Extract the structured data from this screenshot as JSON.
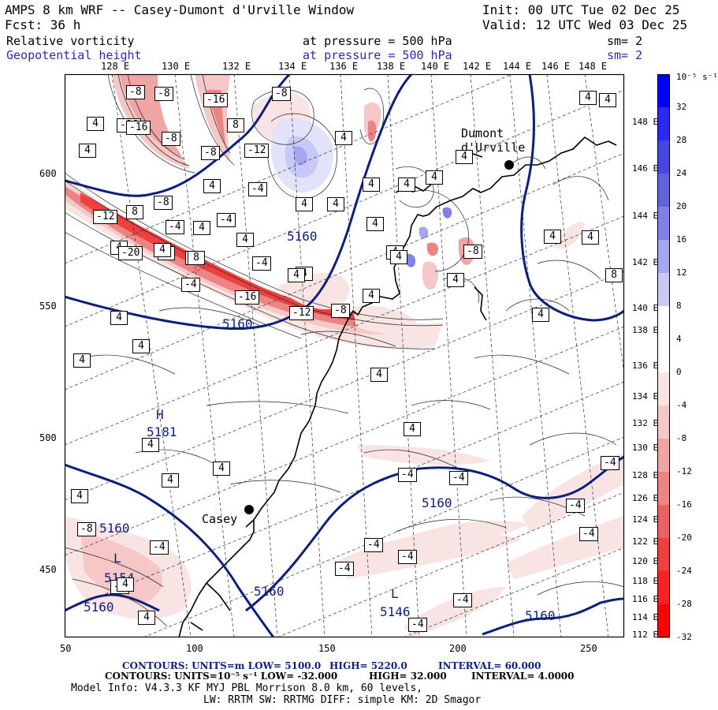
{
  "header": {
    "title_left": "AMPS 8 km WRF -- Casey-Dumont d'Urville Window",
    "init": "Init: 00 UTC Tue 02 Dec 25",
    "fcst": "Fcst:   36 h",
    "valid": "Valid: 12 UTC Wed 03 Dec 25",
    "field1": "Relative vorticity",
    "field1_level": "at pressure =  500 hPa",
    "field1_sm": "sm= 2",
    "field2": "Geopotential height",
    "field2_level": "at pressure =  500 hPa",
    "field2_sm": "sm= 2"
  },
  "axes": {
    "top_lon_labels": [
      "128 E",
      "130 E",
      "132 E",
      "134 E",
      "136 E",
      "138 E",
      "140 E",
      "142 E",
      "144 E",
      "146 E",
      "148 E"
    ],
    "right_lon_labels": [
      "148 E",
      "146 E",
      "144 E",
      "142 E",
      "140 E",
      "138 E",
      "136 E",
      "134 E",
      "132 E",
      "130 E",
      "128 E",
      "126 E",
      "124 E",
      "122 E",
      "120 E",
      "118 E",
      "116 E",
      "114 E",
      "112 E"
    ],
    "left_labels": [
      "600",
      "550",
      "500",
      "450"
    ],
    "bottom_labels": [
      "50",
      "100",
      "150",
      "200",
      "250"
    ]
  },
  "map": {
    "places": [
      {
        "name": "Dumont\nd'Urville"
      },
      {
        "name": "Casey"
      }
    ],
    "height_labels": [
      "5160",
      "5160",
      "5160",
      "5160",
      "5160",
      "5160",
      "5160",
      "5181",
      "5154",
      "5146"
    ],
    "pressure_centers": [
      "H",
      "L",
      "L"
    ],
    "vort_boxes": [
      "-8",
      "-8",
      "-16",
      "-8",
      "4",
      "-16",
      "-8",
      "8",
      "4",
      "-8",
      "-12",
      "-4",
      "4",
      "-16",
      "4",
      "4",
      "4",
      "4",
      "-8",
      "-4",
      "4",
      "-12",
      "8",
      "-4",
      "4",
      "8",
      "4",
      "4",
      "-4",
      "4",
      "-20",
      "4",
      "8",
      "-4",
      "4",
      "4",
      "-8",
      "-16",
      "-12",
      "-8",
      "4",
      "4",
      "4",
      "4",
      "4",
      "4",
      "4",
      "4",
      "4",
      "4",
      "4",
      "-4",
      "-4",
      "-4",
      "-4",
      "-4",
      "-4",
      "-4",
      "-4",
      "-4",
      "-4",
      "-8",
      "-4",
      "-4",
      "4",
      "4",
      "4",
      "4",
      "4",
      "4",
      "8",
      "4",
      "4",
      "4",
      "4",
      "4",
      "4"
    ]
  },
  "colorbar": {
    "unit": "10⁻⁵ s⁻¹",
    "labels": [
      "32",
      "28",
      "24",
      "20",
      "16",
      "12",
      "8",
      "4",
      "0",
      "-4",
      "-8",
      "-12",
      "-16",
      "-20",
      "-24",
      "-28",
      "-32"
    ],
    "colors": [
      "#0000ff",
      "#2a2af0",
      "#4646e0",
      "#6262dd",
      "#8080e6",
      "#a5a5f0",
      "#c9c9f7",
      "#ffffff",
      "#ffffff",
      "#f9e4e4",
      "#f5c7c7",
      "#f0a5a5",
      "#ec8484",
      "#ea6262",
      "#ef4040",
      "#f52424",
      "#ff0000"
    ]
  },
  "footer": {
    "line1_a": "CONTOURS:  UNITS=m  LOW=  5100.0",
    "line1_b": "HIGH=  5220.0",
    "line1_c": "INTERVAL=   60.000",
    "line2_a": "CONTOURS:  UNITS=10⁻⁵ s⁻¹  LOW= -32.000",
    "line2_b": "HIGH=  32.000",
    "line2_c": "INTERVAL=   4.0000",
    "line3": "Model Info: V4.3.3   KF     MYJ PBL  Morrison         8.0 km,  60 levels,",
    "line4": "LW: RRTM SW: RRTMG   DIFF: simple KM: 2D Smagor"
  }
}
